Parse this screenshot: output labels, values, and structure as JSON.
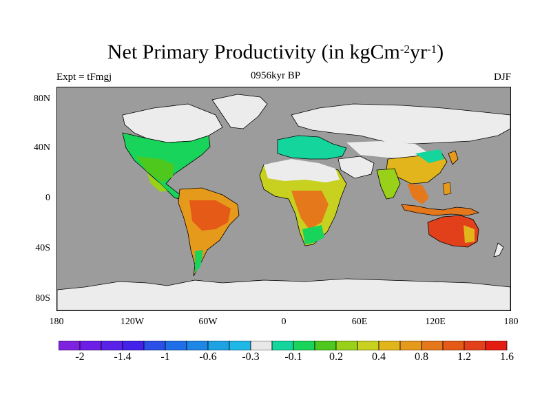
{
  "title": {
    "main": "Net Primary Productivity (in kgCm",
    "exp1": "-2",
    "mid": "yr",
    "exp2": "-1",
    "close": ")"
  },
  "subtitle": {
    "left": "Expt = tFmgj",
    "center": "0956kyr BP",
    "right": "DJF"
  },
  "lat_labels": [
    "80N",
    "40N",
    "0",
    "40S",
    "80S"
  ],
  "lon_labels": [
    "180",
    "120W",
    "60W",
    "0",
    "60E",
    "120E",
    "180"
  ],
  "colors": {
    "ocean": "#9c9c9c",
    "ice": "#ececec",
    "coast": "#000000"
  },
  "colorbar": {
    "colors": [
      "#7f22e0",
      "#6d1ee6",
      "#5a22e8",
      "#4422ea",
      "#2a50e8",
      "#1f6fe8",
      "#1e86e4",
      "#1ea2e4",
      "#1fb8e6",
      "#e8e8e8",
      "#14d69c",
      "#18d45a",
      "#4ec81c",
      "#98d01a",
      "#c8d020",
      "#e2b51c",
      "#e69a1c",
      "#e4781a",
      "#e45a16",
      "#e2401a",
      "#e41c12"
    ],
    "labels": [
      "-2",
      "-1.4",
      "-1",
      "-0.6",
      "-0.3",
      "-0.1",
      "0.2",
      "0.4",
      "0.8",
      "1.2",
      "1.6"
    ]
  }
}
